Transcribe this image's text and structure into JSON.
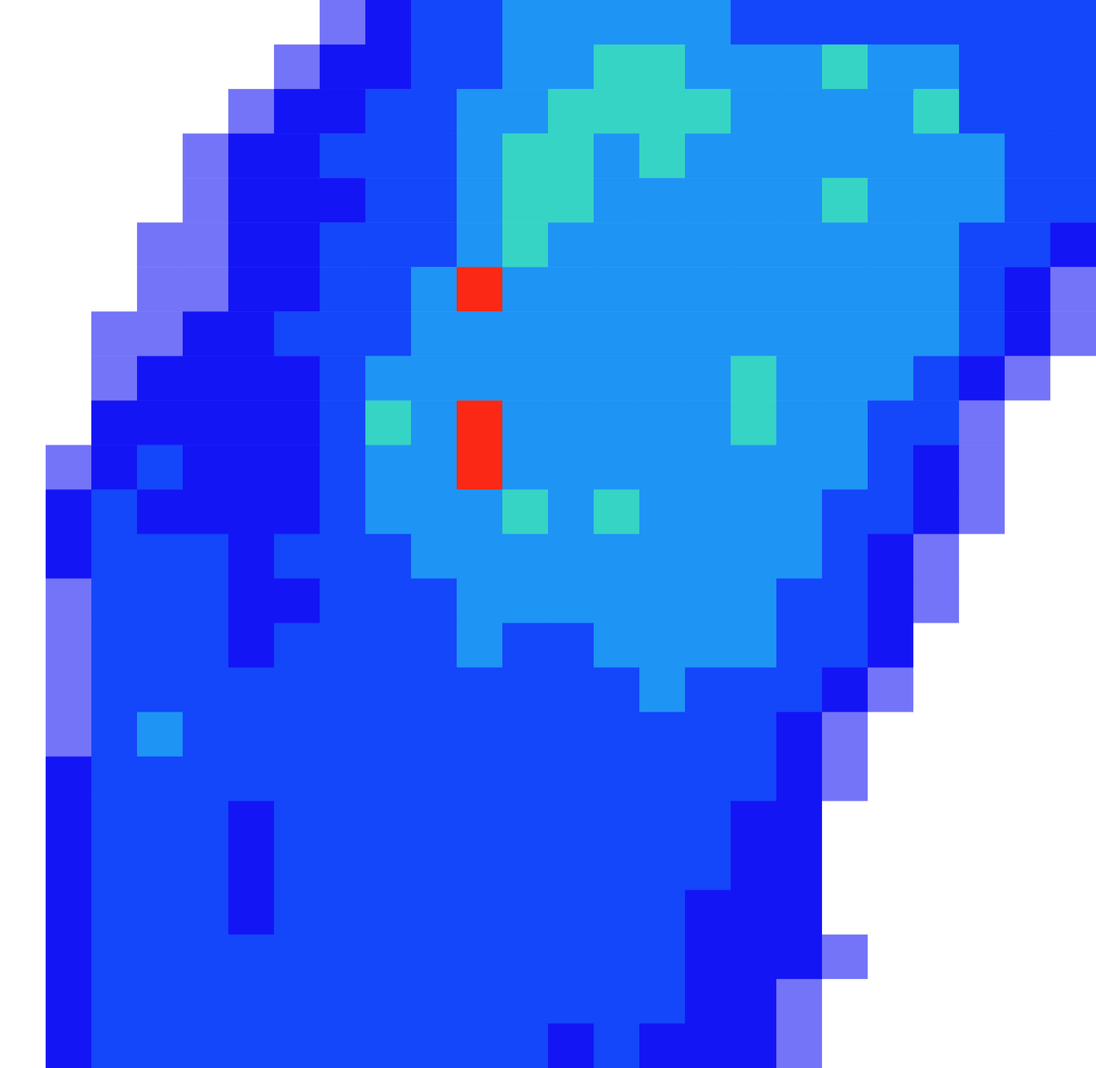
{
  "chart_data": {
    "type": "heatmap",
    "tick_labels": false,
    "color_range": [
      0,
      6
    ],
    "z": [
      [
        0,
        0,
        0,
        0,
        0,
        0,
        0,
        1,
        2,
        3,
        3,
        4,
        4,
        4,
        4,
        4,
        3,
        3,
        3,
        3,
        3,
        3,
        3,
        3
      ],
      [
        0,
        0,
        0,
        0,
        0,
        0,
        1,
        2,
        2,
        3,
        3,
        4,
        4,
        5,
        5,
        4,
        4,
        4,
        5,
        4,
        4,
        3,
        3,
        3
      ],
      [
        0,
        0,
        0,
        0,
        0,
        1,
        2,
        2,
        3,
        3,
        4,
        4,
        5,
        5,
        5,
        5,
        4,
        4,
        4,
        4,
        5,
        3,
        3,
        3
      ],
      [
        0,
        0,
        0,
        0,
        1,
        2,
        2,
        3,
        3,
        3,
        4,
        5,
        5,
        4,
        5,
        4,
        4,
        4,
        4,
        4,
        4,
        4,
        3,
        3
      ],
      [
        0,
        0,
        0,
        0,
        1,
        2,
        2,
        2,
        3,
        3,
        4,
        5,
        5,
        4,
        4,
        4,
        4,
        4,
        5,
        4,
        4,
        4,
        3,
        3
      ],
      [
        0,
        0,
        0,
        1,
        1,
        2,
        2,
        3,
        3,
        3,
        4,
        5,
        4,
        4,
        4,
        4,
        4,
        4,
        4,
        4,
        4,
        3,
        3,
        2
      ],
      [
        0,
        0,
        0,
        1,
        1,
        2,
        2,
        3,
        3,
        4,
        6,
        4,
        4,
        4,
        4,
        4,
        4,
        4,
        4,
        4,
        4,
        3,
        2,
        1
      ],
      [
        0,
        0,
        1,
        1,
        2,
        2,
        3,
        3,
        3,
        4,
        4,
        4,
        4,
        4,
        4,
        4,
        4,
        4,
        4,
        4,
        4,
        3,
        2,
        1
      ],
      [
        0,
        0,
        1,
        2,
        2,
        2,
        2,
        3,
        4,
        4,
        4,
        4,
        4,
        4,
        4,
        4,
        5,
        4,
        4,
        4,
        3,
        2,
        1,
        0
      ],
      [
        0,
        0,
        2,
        2,
        2,
        2,
        2,
        3,
        5,
        4,
        6,
        4,
        4,
        4,
        4,
        4,
        5,
        4,
        4,
        3,
        3,
        1,
        0,
        0
      ],
      [
        0,
        1,
        2,
        3,
        2,
        2,
        2,
        3,
        4,
        4,
        6,
        4,
        4,
        4,
        4,
        4,
        4,
        4,
        4,
        3,
        2,
        1,
        0,
        0
      ],
      [
        0,
        2,
        3,
        2,
        2,
        2,
        2,
        3,
        4,
        4,
        4,
        5,
        4,
        5,
        4,
        4,
        4,
        4,
        3,
        3,
        2,
        1,
        0,
        0
      ],
      [
        0,
        2,
        3,
        3,
        3,
        2,
        3,
        3,
        3,
        4,
        4,
        4,
        4,
        4,
        4,
        4,
        4,
        4,
        3,
        2,
        1,
        0,
        0,
        0
      ],
      [
        0,
        1,
        3,
        3,
        3,
        2,
        2,
        3,
        3,
        3,
        4,
        4,
        4,
        4,
        4,
        4,
        4,
        3,
        3,
        2,
        1,
        0,
        0,
        0
      ],
      [
        0,
        1,
        3,
        3,
        3,
        2,
        3,
        3,
        3,
        3,
        4,
        3,
        3,
        4,
        4,
        4,
        4,
        3,
        3,
        2,
        0,
        0,
        0,
        0
      ],
      [
        0,
        1,
        3,
        3,
        3,
        3,
        3,
        3,
        3,
        3,
        3,
        3,
        3,
        3,
        4,
        3,
        3,
        3,
        2,
        1,
        0,
        0,
        0,
        0
      ],
      [
        0,
        1,
        3,
        4,
        3,
        3,
        3,
        3,
        3,
        3,
        3,
        3,
        3,
        3,
        3,
        3,
        3,
        2,
        1,
        0,
        0,
        0,
        0,
        0
      ],
      [
        0,
        2,
        3,
        3,
        3,
        3,
        3,
        3,
        3,
        3,
        3,
        3,
        3,
        3,
        3,
        3,
        3,
        2,
        1,
        0,
        0,
        0,
        0,
        0
      ],
      [
        0,
        2,
        3,
        3,
        3,
        2,
        3,
        3,
        3,
        3,
        3,
        3,
        3,
        3,
        3,
        3,
        2,
        2,
        0,
        0,
        0,
        0,
        0,
        0
      ],
      [
        0,
        2,
        3,
        3,
        3,
        2,
        3,
        3,
        3,
        3,
        3,
        3,
        3,
        3,
        3,
        3,
        2,
        2,
        0,
        0,
        0,
        0,
        0,
        0
      ],
      [
        0,
        2,
        3,
        3,
        3,
        2,
        3,
        3,
        3,
        3,
        3,
        3,
        3,
        3,
        3,
        2,
        2,
        2,
        0,
        0,
        0,
        0,
        0,
        0
      ],
      [
        0,
        2,
        3,
        3,
        3,
        3,
        3,
        3,
        3,
        3,
        3,
        3,
        3,
        3,
        3,
        2,
        2,
        2,
        1,
        0,
        0,
        0,
        0,
        0
      ],
      [
        0,
        2,
        3,
        3,
        3,
        3,
        3,
        3,
        3,
        3,
        3,
        3,
        3,
        3,
        3,
        2,
        2,
        1,
        0,
        0,
        0,
        0,
        0,
        0
      ],
      [
        0,
        2,
        3,
        3,
        3,
        3,
        3,
        3,
        3,
        3,
        3,
        3,
        2,
        3,
        2,
        2,
        2,
        1,
        0,
        0,
        0,
        0,
        0,
        0
      ]
    ]
  }
}
